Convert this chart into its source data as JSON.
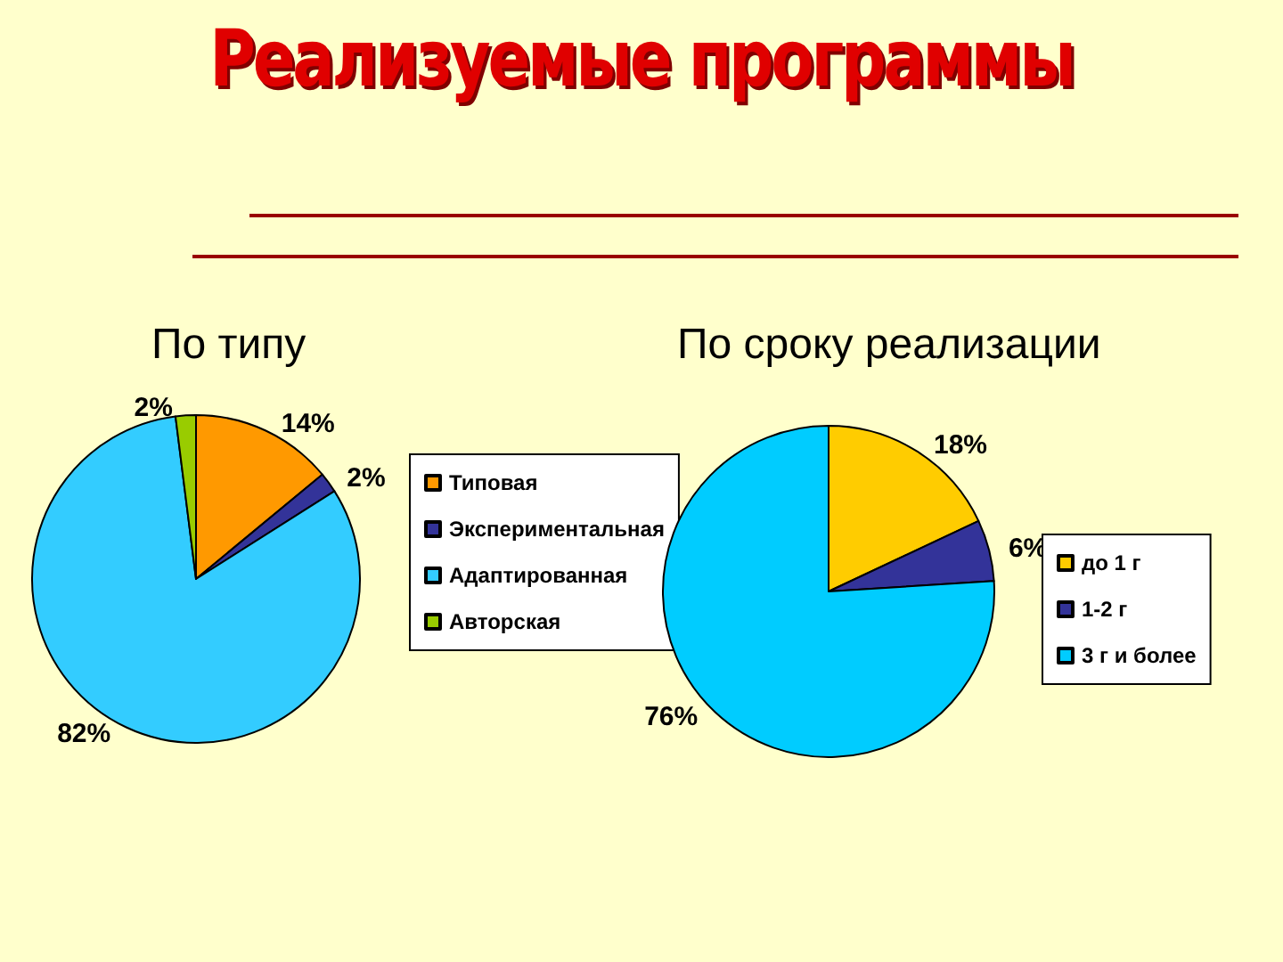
{
  "chart_data": [
    {
      "type": "pie",
      "title": "Реализуемые программы",
      "subtitle": "По типу",
      "categories": [
        "Типовая",
        "Экспериментальная",
        "Адаптированная",
        "Авторская"
      ],
      "values": [
        14,
        2,
        82,
        2
      ],
      "colors": [
        "#ff9900",
        "#333399",
        "#33ccff",
        "#99cc00"
      ],
      "value_labels": [
        "14%",
        "2%",
        "82%",
        "2%"
      ],
      "legend": "right"
    },
    {
      "type": "pie",
      "title": "По сроку реализации",
      "categories": [
        "до 1 г",
        "1-2 г",
        "3 г и более"
      ],
      "values": [
        18,
        6,
        76
      ],
      "colors": [
        "#ffcc00",
        "#333399",
        "#00ccff"
      ],
      "value_labels": [
        "18%",
        "6%",
        "76%"
      ],
      "legend": "right"
    }
  ]
}
